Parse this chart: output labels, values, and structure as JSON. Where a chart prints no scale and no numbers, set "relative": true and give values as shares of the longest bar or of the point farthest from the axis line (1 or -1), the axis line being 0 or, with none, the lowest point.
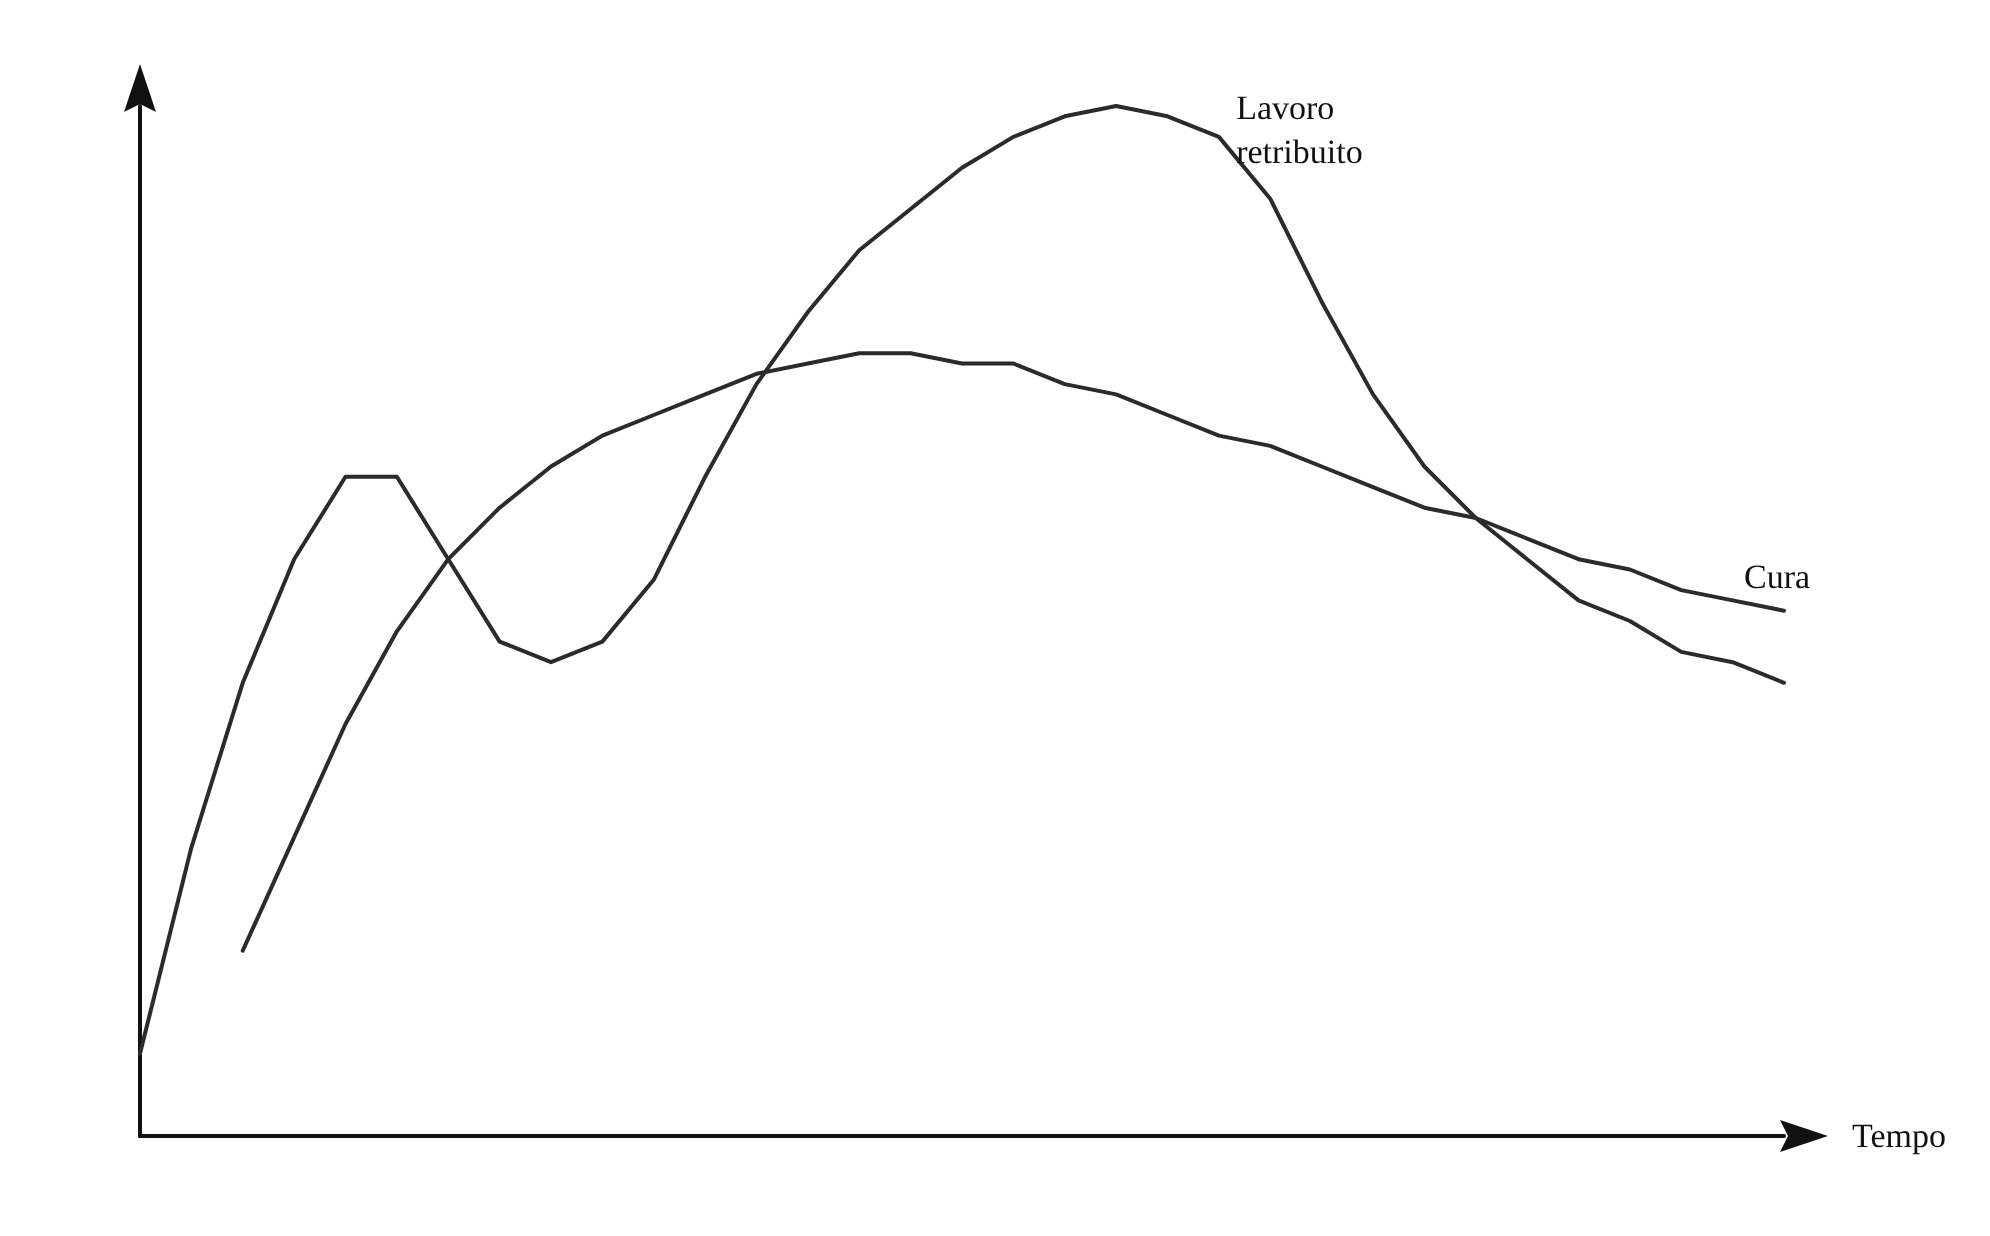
{
  "chart_data": {
    "type": "line",
    "xlabel": "Tempo",
    "relative": true,
    "grid": false,
    "legend": false,
    "marker": "none",
    "line_style": "solid",
    "categories": [
      null,
      null,
      null,
      null,
      null,
      null,
      null,
      null,
      null,
      null,
      null,
      null,
      null,
      null,
      null,
      null,
      null,
      null,
      null,
      null,
      null,
      null,
      null,
      null,
      null,
      null,
      null,
      null,
      null,
      null,
      null,
      null,
      null
    ],
    "series": [
      {
        "name": "Lavoro retribuito",
        "color": "#2b2b2b",
        "values": [
          0.08,
          0.28,
          0.44,
          0.56,
          0.64,
          0.64,
          0.56,
          0.48,
          0.46,
          0.48,
          0.54,
          0.64,
          0.73,
          0.8,
          0.86,
          0.9,
          0.94,
          0.97,
          0.99,
          1,
          0.99,
          0.97,
          0.91,
          0.81,
          0.72,
          0.65,
          0.6,
          0.56,
          0.52,
          0.5,
          0.47,
          0.46,
          0.44
        ]
      },
      {
        "name": "Cura",
        "color": "#2b2b2b",
        "values": [
          null,
          null,
          0.18,
          0.29,
          0.4,
          0.49,
          0.56,
          0.61,
          0.65,
          0.68,
          0.7,
          0.72,
          0.74,
          0.75,
          0.76,
          0.76,
          0.75,
          0.75,
          0.73,
          0.72,
          0.7,
          0.68,
          0.67,
          0.65,
          0.63,
          0.61,
          0.6,
          0.58,
          0.56,
          0.55,
          0.53,
          0.52,
          0.51
        ]
      }
    ]
  }
}
